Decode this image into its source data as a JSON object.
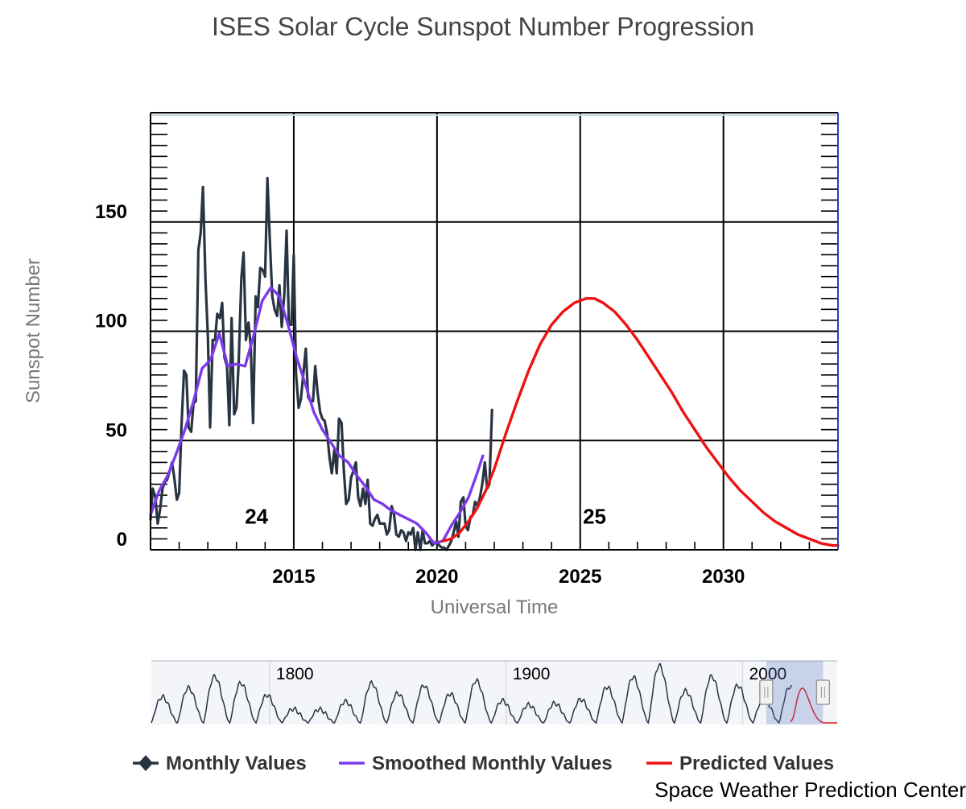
{
  "chart_data": {
    "type": "line",
    "title": "ISES Solar Cycle Sunspot Number Progression",
    "xlabel": "Universal Time",
    "ylabel": "Sunspot Number",
    "xlim": [
      2010.0,
      2034.0
    ],
    "ylim": [
      0,
      200
    ],
    "x_ticks": [
      2015,
      2020,
      2025,
      2030
    ],
    "y_ticks": [
      0,
      50,
      100,
      150
    ],
    "grid": true,
    "legend_position": "bottom",
    "cycle_labels": [
      {
        "text": "24",
        "x": 2013.7,
        "y": 12
      },
      {
        "text": "25",
        "x": 2025.5,
        "y": 12
      }
    ],
    "series": [
      {
        "name": "Monthly Values",
        "color": "#283442",
        "x": [
          2010.0,
          2010.08,
          2010.17,
          2010.25,
          2010.33,
          2010.42,
          2010.5,
          2010.58,
          2010.67,
          2010.75,
          2010.83,
          2010.92,
          2011.0,
          2011.08,
          2011.17,
          2011.25,
          2011.33,
          2011.42,
          2011.5,
          2011.58,
          2011.67,
          2011.75,
          2011.83,
          2011.92,
          2012.0,
          2012.08,
          2012.17,
          2012.25,
          2012.33,
          2012.42,
          2012.5,
          2012.58,
          2012.67,
          2012.75,
          2012.83,
          2012.92,
          2013.0,
          2013.08,
          2013.17,
          2013.25,
          2013.33,
          2013.42,
          2013.5,
          2013.58,
          2013.67,
          2013.75,
          2013.83,
          2013.92,
          2014.0,
          2014.08,
          2014.17,
          2014.25,
          2014.33,
          2014.42,
          2014.5,
          2014.58,
          2014.67,
          2014.75,
          2014.83,
          2014.92,
          2015.0,
          2015.08,
          2015.17,
          2015.25,
          2015.33,
          2015.42,
          2015.5,
          2015.58,
          2015.67,
          2015.75,
          2015.83,
          2015.92,
          2016.0,
          2016.08,
          2016.17,
          2016.25,
          2016.33,
          2016.42,
          2016.5,
          2016.58,
          2016.67,
          2016.75,
          2016.83,
          2016.92,
          2017.0,
          2017.08,
          2017.17,
          2017.25,
          2017.33,
          2017.42,
          2017.5,
          2017.58,
          2017.67,
          2017.75,
          2017.83,
          2017.92,
          2018.0,
          2018.08,
          2018.17,
          2018.25,
          2018.33,
          2018.42,
          2018.5,
          2018.58,
          2018.67,
          2018.75,
          2018.83,
          2018.92,
          2019.0,
          2019.08,
          2019.17,
          2019.25,
          2019.33,
          2019.42,
          2019.5,
          2019.58,
          2019.67,
          2019.75,
          2019.83,
          2019.92,
          2020.0,
          2020.08,
          2020.17,
          2020.25,
          2020.33,
          2020.42,
          2020.5,
          2020.58,
          2020.67,
          2020.75,
          2020.83,
          2020.92,
          2021.0,
          2021.08,
          2021.17,
          2021.25,
          2021.33,
          2021.42,
          2021.5,
          2021.58,
          2021.67,
          2021.75,
          2021.83,
          2021.92
        ],
        "values": [
          14,
          28,
          24,
          12,
          18,
          28,
          31,
          32,
          36,
          40,
          33,
          23,
          26,
          56,
          82,
          80,
          56,
          54,
          67,
          68,
          137,
          145,
          166,
          123,
          98,
          56,
          96,
          96,
          108,
          106,
          113,
          88,
          84,
          57,
          106,
          62,
          65,
          87,
          124,
          136,
          96,
          104,
          93,
          58,
          116,
          111,
          129,
          128,
          125,
          170,
          140,
          116,
          110,
          107,
          121,
          102,
          117,
          146,
          103,
          103,
          135,
          80,
          65,
          69,
          80,
          92,
          70,
          68,
          68,
          84,
          72,
          63,
          60,
          59,
          53,
          42,
          35,
          46,
          35,
          60,
          58,
          36,
          21,
          23,
          33,
          36,
          40,
          24,
          20,
          28,
          21,
          32,
          12,
          11,
          14,
          16,
          12,
          12,
          12,
          7,
          9,
          20,
          16,
          7,
          6,
          9,
          8,
          4,
          8,
          7,
          10,
          0,
          8,
          0,
          9,
          3,
          3,
          4,
          2,
          3,
          4,
          2,
          1,
          1,
          0,
          2,
          4,
          8,
          13,
          6,
          22,
          24,
          11,
          9,
          15,
          16,
          22,
          20,
          24,
          30,
          40,
          28,
          30,
          64
        ],
        "marker": "diamond"
      },
      {
        "name": "Smoothed Monthly Values",
        "color": "#7c3aed",
        "x": [
          2010.0,
          2010.3,
          2010.6,
          2010.9,
          2011.2,
          2011.5,
          2011.8,
          2012.1,
          2012.4,
          2012.7,
          2013.0,
          2013.3,
          2013.6,
          2013.9,
          2014.2,
          2014.5,
          2014.8,
          2015.1,
          2015.4,
          2015.7,
          2016.0,
          2016.3,
          2016.6,
          2016.9,
          2017.2,
          2017.5,
          2017.8,
          2018.1,
          2018.4,
          2018.7,
          2019.0,
          2019.3,
          2019.6,
          2019.9,
          2020.2,
          2020.5,
          2020.8,
          2021.1,
          2021.4,
          2021.6
        ],
        "values": [
          16,
          27,
          34,
          44,
          55,
          68,
          83,
          87,
          99,
          84,
          85,
          84,
          98,
          114,
          120,
          116,
          103,
          88,
          76,
          63,
          55,
          49,
          43,
          40,
          34,
          29,
          23,
          21,
          18,
          16,
          14,
          12,
          8,
          3,
          4,
          11,
          17,
          24,
          35,
          43
        ]
      },
      {
        "name": "Predicted Values",
        "color": "#ee1111",
        "x": [
          2020.2,
          2020.5,
          2020.8,
          2021.1,
          2021.4,
          2021.7,
          2022.0,
          2022.4,
          2022.8,
          2023.2,
          2023.6,
          2024.0,
          2024.4,
          2024.8,
          2025.2,
          2025.5,
          2025.8,
          2026.2,
          2026.6,
          2027.0,
          2027.4,
          2027.8,
          2028.2,
          2028.6,
          2029.0,
          2029.4,
          2029.8,
          2030.2,
          2030.6,
          2031.0,
          2031.4,
          2031.8,
          2032.2,
          2032.6,
          2033.0,
          2033.4,
          2033.8,
          2034.0
        ],
        "values": [
          4,
          5,
          8,
          13,
          19,
          27,
          37,
          53,
          68,
          82,
          94,
          103,
          109,
          113,
          115,
          115,
          113,
          109,
          103,
          96,
          88,
          80,
          72,
          63,
          55,
          47,
          40,
          33,
          27,
          22,
          17,
          13,
          10,
          7,
          5,
          3,
          2,
          2
        ]
      }
    ],
    "range_slider": {
      "xlim": [
        1750,
        2040
      ],
      "labels": [
        {
          "text": "1800",
          "x": 1800
        },
        {
          "text": "1900",
          "x": 1900
        },
        {
          "text": "2000",
          "x": 2000
        }
      ],
      "selection": [
        2010,
        2034
      ]
    }
  },
  "footer": {
    "credit": "Space Weather Prediction Center"
  }
}
